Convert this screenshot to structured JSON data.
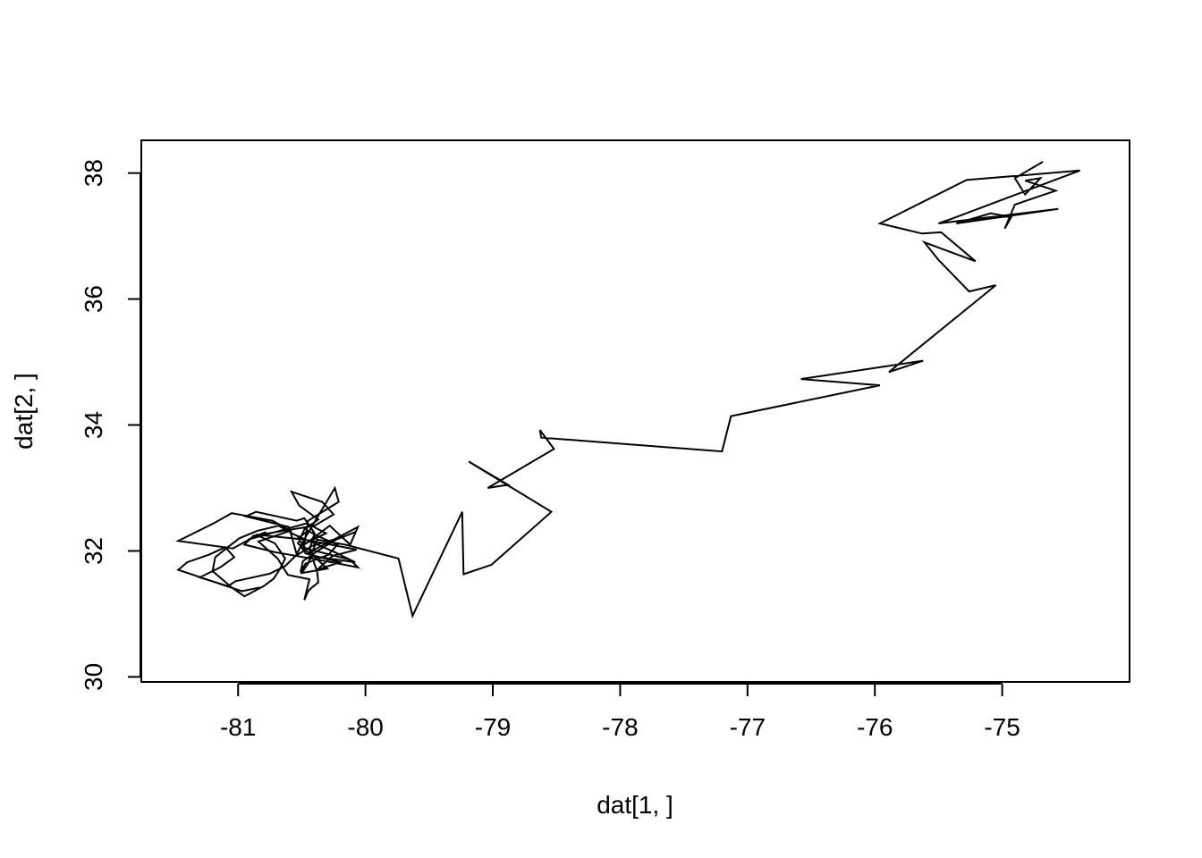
{
  "chart_data": {
    "type": "line",
    "title": "",
    "xlabel": "dat[1, ]",
    "ylabel": "dat[2, ]",
    "xlim": [
      -81.76,
      -74.0
    ],
    "ylim": [
      29.92,
      38.52
    ],
    "xticks": [
      -81,
      -80,
      -79,
      -78,
      -77,
      -76,
      -75
    ],
    "yticks": [
      30,
      32,
      34,
      36,
      38
    ],
    "grid": false,
    "legend": "none",
    "line_color": "#000000",
    "series": [
      {
        "x": [
          -74.68,
          -74.9,
          -74.82,
          -74.7,
          -74.82,
          -74.58,
          -74.9,
          -74.98,
          -74.93,
          -75.09,
          -75.36,
          -74.56,
          -75.5,
          -75.43,
          -74.39,
          -75.28,
          -75.96,
          -75.63,
          -75.48,
          -75.21,
          -75.61,
          -75.5,
          -75.26,
          -75.05,
          -75.89,
          -75.62,
          -76.58,
          -75.96,
          -77.13,
          -77.2,
          -78.62,
          -78.63,
          -78.52,
          -79.04,
          -78.88,
          -79.19,
          -78.54,
          -79.01,
          -79.23,
          -79.24,
          -79.63,
          -79.74,
          -80.16,
          -80.38,
          -80.45,
          -80.5,
          -80.3,
          -80.44,
          -80.06,
          -80.12,
          -80.28,
          -80.48,
          -80.45,
          -80.21,
          -80.24,
          -80.47,
          -80.54,
          -80.6,
          -80.94,
          -80.86,
          -80.54,
          -80.48,
          -80.4,
          -80.44,
          -80.38,
          -80.37,
          -80.42,
          -80.45,
          -80.48,
          -80.44,
          -80.61,
          -80.69,
          -80.84,
          -80.59,
          -80.73,
          -81.05,
          -81.19,
          -81.47,
          -81.04,
          -80.86,
          -80.78,
          -80.92,
          -80.46,
          -80.31,
          -80.51,
          -80.47,
          -80.2,
          -80.38,
          -80.26,
          -80.07,
          -80.48,
          -80.86,
          -80.71,
          -80.63,
          -80.67,
          -80.72,
          -80.8,
          -80.95,
          -81.05,
          -81.2,
          -81.18,
          -81.08,
          -80.99,
          -80.85,
          -80.68,
          -80.56,
          -80.4,
          -80.24,
          -80.08,
          -80.42,
          -80.53,
          -80.48,
          -80.37,
          -80.52,
          -80.58,
          -80.34,
          -80.25,
          -80.4,
          -80.88,
          -80.95,
          -80.71,
          -80.37,
          -80.06,
          -80.12,
          -80.47,
          -80.53,
          -80.45,
          -80.38,
          -80.22,
          -80.29,
          -80.47,
          -80.51,
          -80.49,
          -80.36,
          -80.23,
          -80.08,
          -80.18,
          -80.42,
          -80.55,
          -80.63,
          -80.75,
          -81.02,
          -81.08,
          -81.3,
          -81.14,
          -81.03,
          -81.1,
          -81.23,
          -81.4,
          -81.47,
          -80.97,
          -80.83
        ],
        "y": [
          38.18,
          37.92,
          37.66,
          37.92,
          37.88,
          37.72,
          37.5,
          37.12,
          37.3,
          37.36,
          37.2,
          37.43,
          37.2,
          37.25,
          38.04,
          37.89,
          37.2,
          37.04,
          37.06,
          36.6,
          36.9,
          36.62,
          36.12,
          36.22,
          34.84,
          35.02,
          34.73,
          34.63,
          34.14,
          33.58,
          33.8,
          33.92,
          33.62,
          33.0,
          33.05,
          33.42,
          32.62,
          31.78,
          31.63,
          32.62,
          30.97,
          31.88,
          32.1,
          32.18,
          31.8,
          31.65,
          31.72,
          31.98,
          32.38,
          32.1,
          32.4,
          32.1,
          32.48,
          32.78,
          33.0,
          32.22,
          31.95,
          32.38,
          32.55,
          32.62,
          32.48,
          32.52,
          32.28,
          32.02,
          31.68,
          31.5,
          31.42,
          31.36,
          31.22,
          31.55,
          31.62,
          31.88,
          32.15,
          32.32,
          32.48,
          32.6,
          32.44,
          32.16,
          32.04,
          32.24,
          32.3,
          32.18,
          32.44,
          32.28,
          32.08,
          31.96,
          31.82,
          31.7,
          31.92,
          32.02,
          32.18,
          32.26,
          32.12,
          31.88,
          31.72,
          31.56,
          31.44,
          31.28,
          31.42,
          31.68,
          31.9,
          32.06,
          32.2,
          32.32,
          32.4,
          32.26,
          32.12,
          31.98,
          31.82,
          31.92,
          32.12,
          32.34,
          32.5,
          32.72,
          32.94,
          32.78,
          32.58,
          32.4,
          32.24,
          32.1,
          31.98,
          31.86,
          31.74,
          31.86,
          32.04,
          32.2,
          32.32,
          32.24,
          32.1,
          31.94,
          31.8,
          31.66,
          31.84,
          32.02,
          32.18,
          32.3,
          32.22,
          32.08,
          31.92,
          31.76,
          31.64,
          31.52,
          31.44,
          31.58,
          31.74,
          31.9,
          32.06,
          31.94,
          31.82,
          31.7,
          31.36,
          31.42
        ],
        "note": ""
      }
    ]
  }
}
